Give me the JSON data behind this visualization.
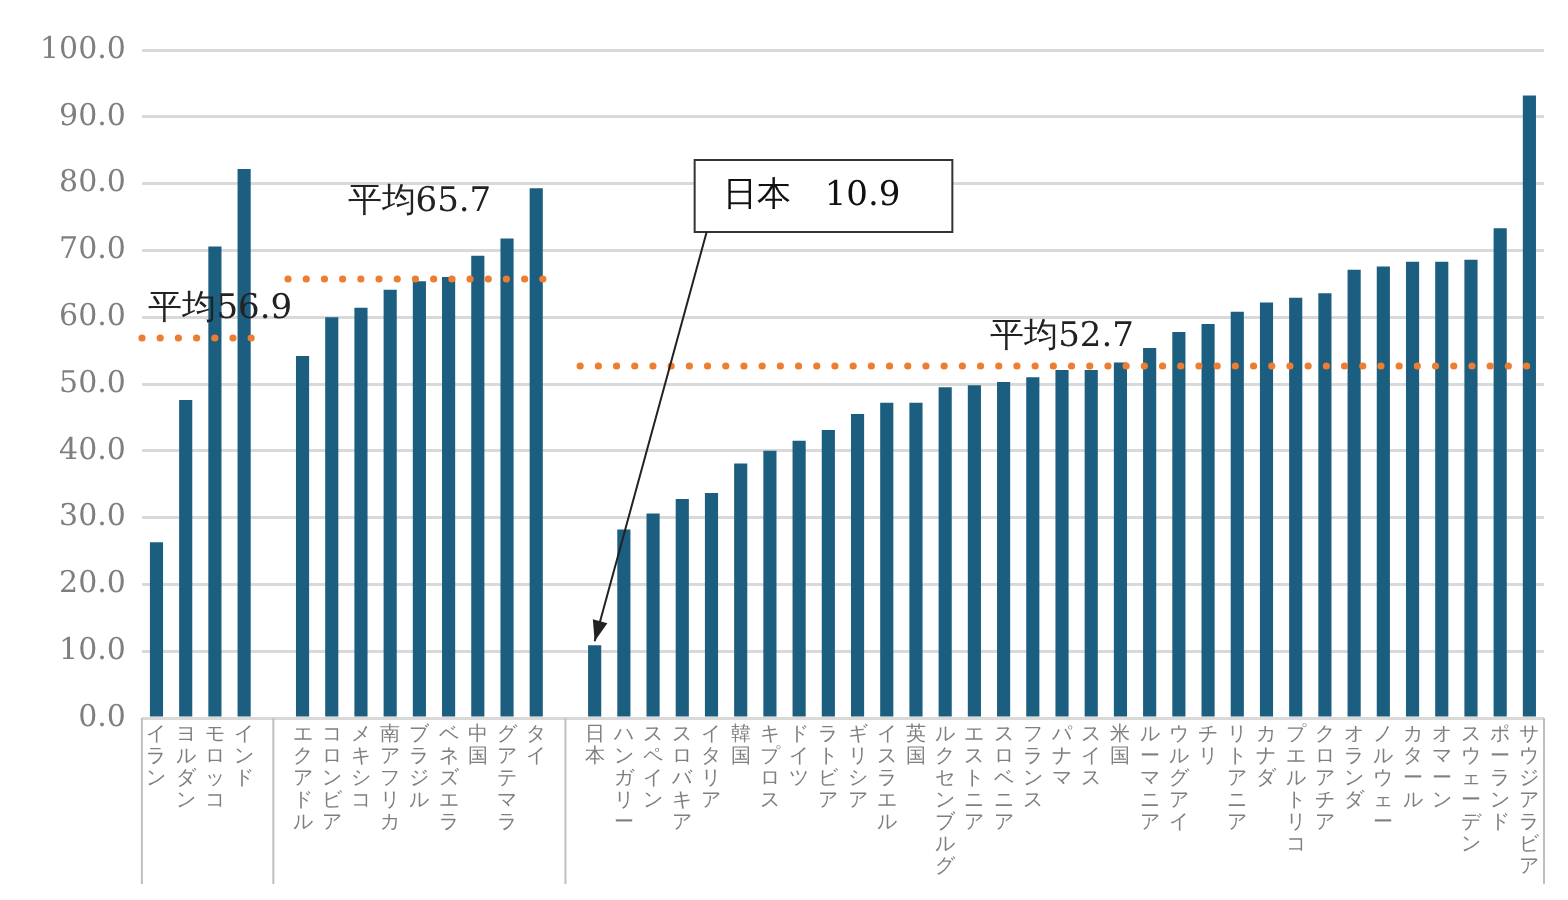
{
  "chart_data": {
    "type": "bar",
    "categories": [
      "イラン",
      "ヨルダン",
      "モロッコ",
      "インド",
      null,
      "エクアドル",
      "コロンビア",
      "メキシコ",
      "南アフリカ",
      "ブラジル",
      "ベネズエラ",
      "中国",
      "グアテマラ",
      "タイ",
      null,
      "日本",
      "ハンガリー",
      "スペイン",
      "スロバキア",
      "イタリア",
      "韓国",
      "キプロス",
      "ドイツ",
      "ラトビア",
      "ギリシア",
      "イスラエル",
      "英国",
      "ルクセンブルグ",
      "エストニア",
      "スロベニア",
      "フランス",
      "パナマ",
      "スイス",
      "米国",
      "ルーマニア",
      "ウルグアイ",
      "チリ",
      "リトアニア",
      "カナダ",
      "プエルトリコ",
      "クロアチア",
      "オランダ",
      "ノルウェー",
      "カタール",
      "オマーン",
      "スウェーデン",
      "ポーランド",
      "サウジアラビア"
    ],
    "values": [
      26.3,
      47.6,
      70.6,
      82.2,
      null,
      54.2,
      60.0,
      61.4,
      64.1,
      65.4,
      66.0,
      69.2,
      71.8,
      79.3,
      null,
      10.9,
      28.2,
      30.6,
      32.8,
      33.7,
      38.1,
      40.0,
      41.5,
      43.1,
      45.5,
      47.2,
      47.2,
      49.5,
      49.8,
      50.3,
      51.0,
      52.1,
      52.1,
      53.2,
      55.4,
      57.8,
      59.0,
      60.8,
      62.2,
      62.9,
      63.6,
      67.1,
      67.6,
      68.3,
      68.3,
      68.6,
      73.3,
      93.2
    ],
    "color": "#1b5e7f",
    "ylim": [
      0,
      100
    ],
    "yticks": [
      {
        "value": 0,
        "label": "0.0"
      },
      {
        "value": 10,
        "label": "10.0"
      },
      {
        "value": 20,
        "label": "20.0"
      },
      {
        "value": 30,
        "label": "30.0"
      },
      {
        "value": 40,
        "label": "40.0"
      },
      {
        "value": 50,
        "label": "50.0"
      },
      {
        "value": 60,
        "label": "60.0"
      },
      {
        "value": 70,
        "label": "70.0"
      },
      {
        "value": 80,
        "label": "80.0"
      },
      {
        "value": 90,
        "label": "90.0"
      },
      {
        "value": 100,
        "label": "100.0"
      }
    ],
    "grid": "y",
    "ref_lines": [
      {
        "axis": "y",
        "value": 56.9,
        "label": "平均56.9",
        "color": "#ed7d31",
        "line_style": "dotted"
      },
      {
        "axis": "y",
        "value": 65.7,
        "label": "平均65.7",
        "color": "#ed7d31",
        "line_style": "dotted"
      },
      {
        "axis": "y",
        "value": 52.7,
        "label": "平均52.7",
        "color": "#ed7d31",
        "line_style": "dotted"
      }
    ],
    "annotations": [
      {
        "text": "日本　10.9",
        "x": "日本",
        "y": 10.9
      }
    ]
  }
}
